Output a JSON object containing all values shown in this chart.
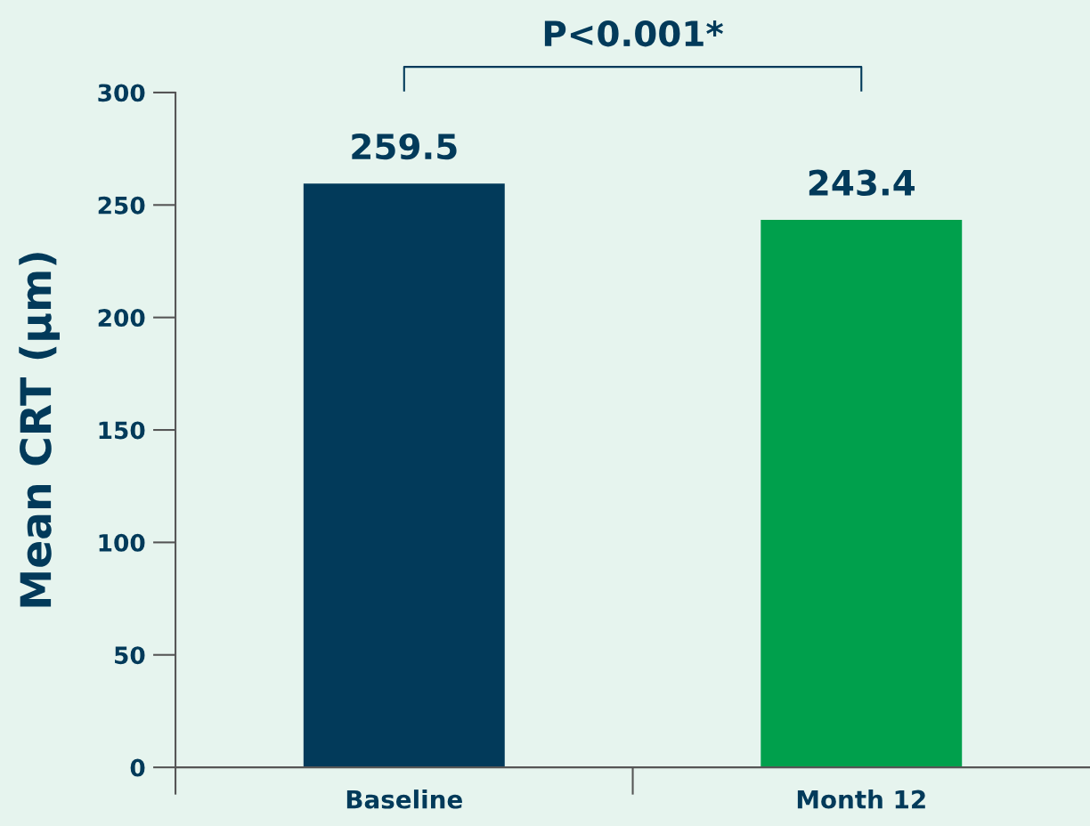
{
  "chart_data": {
    "type": "bar",
    "ylabel": "Mean CRT (µm)",
    "categories": [
      "Baseline",
      "Month 12"
    ],
    "values": [
      259.5,
      243.4
    ],
    "colors": [
      "#023a5a",
      "#00a04c"
    ],
    "ylim": [
      0,
      300
    ],
    "yticks": [
      0,
      50,
      100,
      150,
      200,
      250,
      300
    ],
    "data_labels": true,
    "grid": false,
    "legend": false,
    "annotations": [
      "P<0.001*"
    ]
  }
}
